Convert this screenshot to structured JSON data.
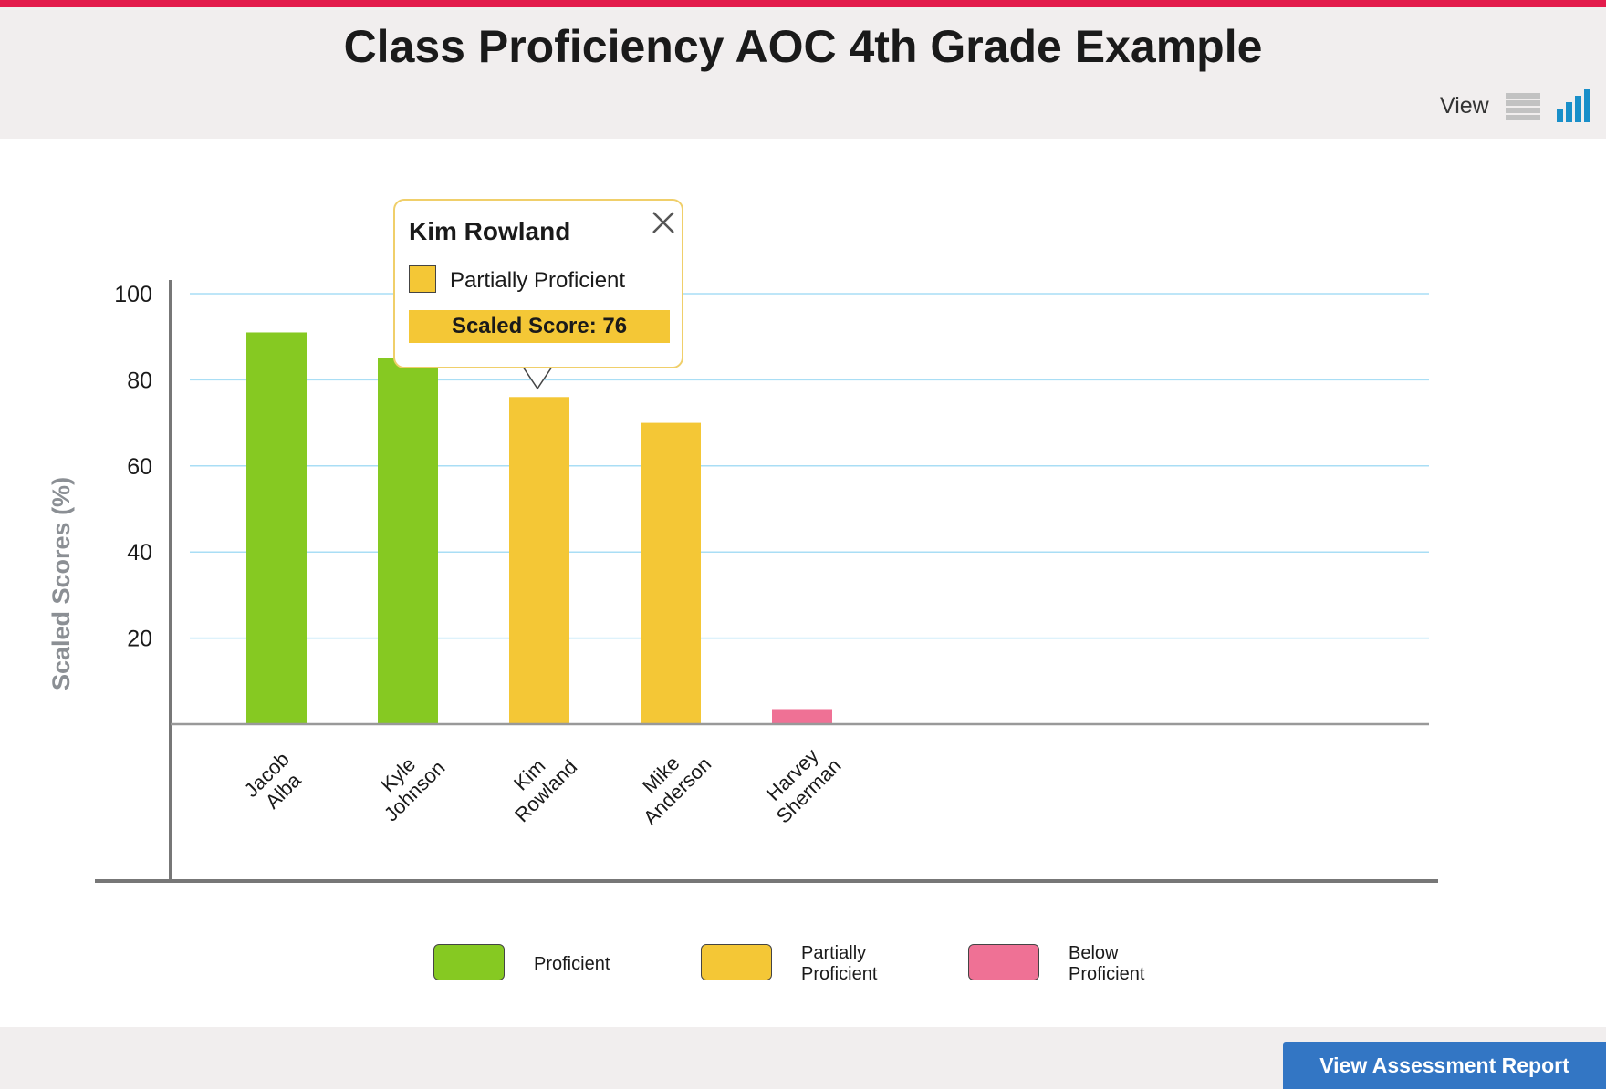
{
  "header": {
    "title": "Class Proficiency AOC 4th Grade Example",
    "view_label": "View",
    "accent_color": "#e31b4b",
    "view_icons": [
      "list-icon",
      "bar-chart-icon"
    ]
  },
  "chart_data": {
    "type": "bar",
    "categories": [
      [
        "Jacob",
        "Alba"
      ],
      [
        "Kyle",
        "Johnson"
      ],
      [
        "Kim",
        "Rowland"
      ],
      [
        "Mike",
        "Anderson"
      ],
      [
        "Harvey",
        "Sherman"
      ]
    ],
    "values": [
      91,
      85,
      76,
      70,
      3.5
    ],
    "statuses": [
      "Proficient",
      "Proficient",
      "Partially Proficient",
      "Partially Proficient",
      "Below Proficient"
    ],
    "yticks": [
      "20",
      "40",
      "60",
      "80",
      "100"
    ],
    "ylabel": "Scaled Scores (%)",
    "xlabel": "",
    "ylim": [
      0,
      100
    ],
    "grid": true,
    "legend_position": "bottom"
  },
  "legend": {
    "items": [
      {
        "lines": [
          "Proficient"
        ],
        "color": "#86c922"
      },
      {
        "lines": [
          "Partially",
          "Proficient"
        ],
        "color": "#f4c736"
      },
      {
        "lines": [
          "Below",
          "Proficient"
        ],
        "color": "#ef7195"
      }
    ]
  },
  "tooltip": {
    "name": "Kim Rowland",
    "status": "Partially Proficient",
    "score_text": "Scaled Score: 76",
    "color": "#f4c736"
  },
  "footer": {
    "button_label": "View Assessment Report",
    "button_color": "#3376c4"
  }
}
